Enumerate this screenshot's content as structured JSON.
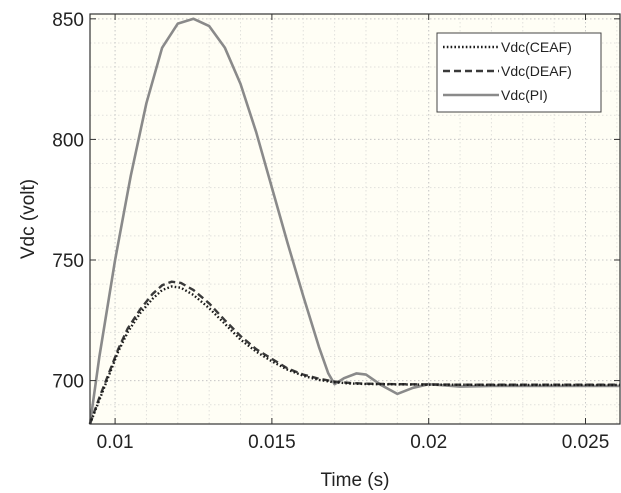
{
  "chart_data": {
    "type": "line",
    "xlabel": "Time (s)",
    "ylabel": "Vdc (volt)",
    "xlim": [
      0.0092,
      0.0261
    ],
    "ylim": [
      682,
      852
    ],
    "xticks": [
      0.01,
      0.015,
      0.02,
      0.025
    ],
    "xtick_labels": [
      "0.01",
      "0.015",
      "0.02",
      "0.025"
    ],
    "yticks": [
      700,
      750,
      800,
      850
    ],
    "ytick_labels": [
      "700",
      "750",
      "800",
      "850"
    ],
    "grid": true,
    "minor_grid": true,
    "legend_position": "top-right",
    "colors": {
      "background": "#fffef5",
      "axes": "#333333",
      "grid": "#c9c9c9",
      "ceaf": "#1a1a1a",
      "deaf": "#3a3a3a",
      "pi": "#8a8a8a"
    },
    "series": [
      {
        "name": "Vdc(CEAF)",
        "style": "dotted",
        "x": [
          0.0092,
          0.0095,
          0.0098,
          0.0101,
          0.0104,
          0.0108,
          0.0112,
          0.0115,
          0.0118,
          0.0121,
          0.0125,
          0.013,
          0.0135,
          0.014,
          0.0145,
          0.015,
          0.0155,
          0.016,
          0.0165,
          0.017,
          0.0175,
          0.018,
          0.019,
          0.02,
          0.021,
          0.022,
          0.023,
          0.024,
          0.025,
          0.026,
          0.0261
        ],
        "y": [
          682,
          692,
          702,
          712,
          720,
          728,
          734,
          737.5,
          739,
          738.5,
          735.5,
          730,
          723.5,
          717,
          712,
          708,
          704.5,
          702,
          700.3,
          699.3,
          698.8,
          698.6,
          698.4,
          698.3,
          698.3,
          698.2,
          698.2,
          698.2,
          698.2,
          698.2,
          698.2
        ]
      },
      {
        "name": "Vdc(DEAF)",
        "style": "dashed",
        "x": [
          0.0092,
          0.0095,
          0.0098,
          0.0101,
          0.0104,
          0.0108,
          0.0112,
          0.0115,
          0.0118,
          0.0121,
          0.0125,
          0.013,
          0.0135,
          0.014,
          0.0145,
          0.015,
          0.0155,
          0.016,
          0.0165,
          0.017,
          0.0175,
          0.018,
          0.019,
          0.02,
          0.021,
          0.022,
          0.023,
          0.024,
          0.025,
          0.026,
          0.0261
        ],
        "y": [
          682,
          693,
          703,
          713,
          721.5,
          729.5,
          736,
          739.5,
          741,
          740.5,
          737.5,
          732,
          725,
          718.5,
          713,
          709,
          705,
          702.5,
          700.8,
          699.6,
          699,
          698.7,
          698.5,
          698.4,
          698.3,
          698.3,
          698.3,
          698.3,
          698.3,
          698.3,
          698.3
        ]
      },
      {
        "name": "Vdc(PI)",
        "style": "solid",
        "x": [
          0.0092,
          0.0095,
          0.01,
          0.0105,
          0.011,
          0.0115,
          0.012,
          0.0125,
          0.013,
          0.0135,
          0.014,
          0.0145,
          0.015,
          0.0155,
          0.016,
          0.0165,
          0.0168,
          0.017,
          0.0173,
          0.0177,
          0.018,
          0.0185,
          0.019,
          0.0195,
          0.02,
          0.021,
          0.022,
          0.023,
          0.024,
          0.025,
          0.026,
          0.0261
        ],
        "y": [
          682,
          710,
          750,
          785,
          815,
          838,
          848,
          850,
          847,
          838,
          823,
          803,
          780,
          757,
          735,
          714,
          703,
          698.5,
          701,
          703,
          702.5,
          698,
          694.5,
          697,
          698.5,
          697.5,
          697.8,
          697.8,
          697.8,
          697.8,
          697.8,
          697.8
        ]
      }
    ]
  }
}
